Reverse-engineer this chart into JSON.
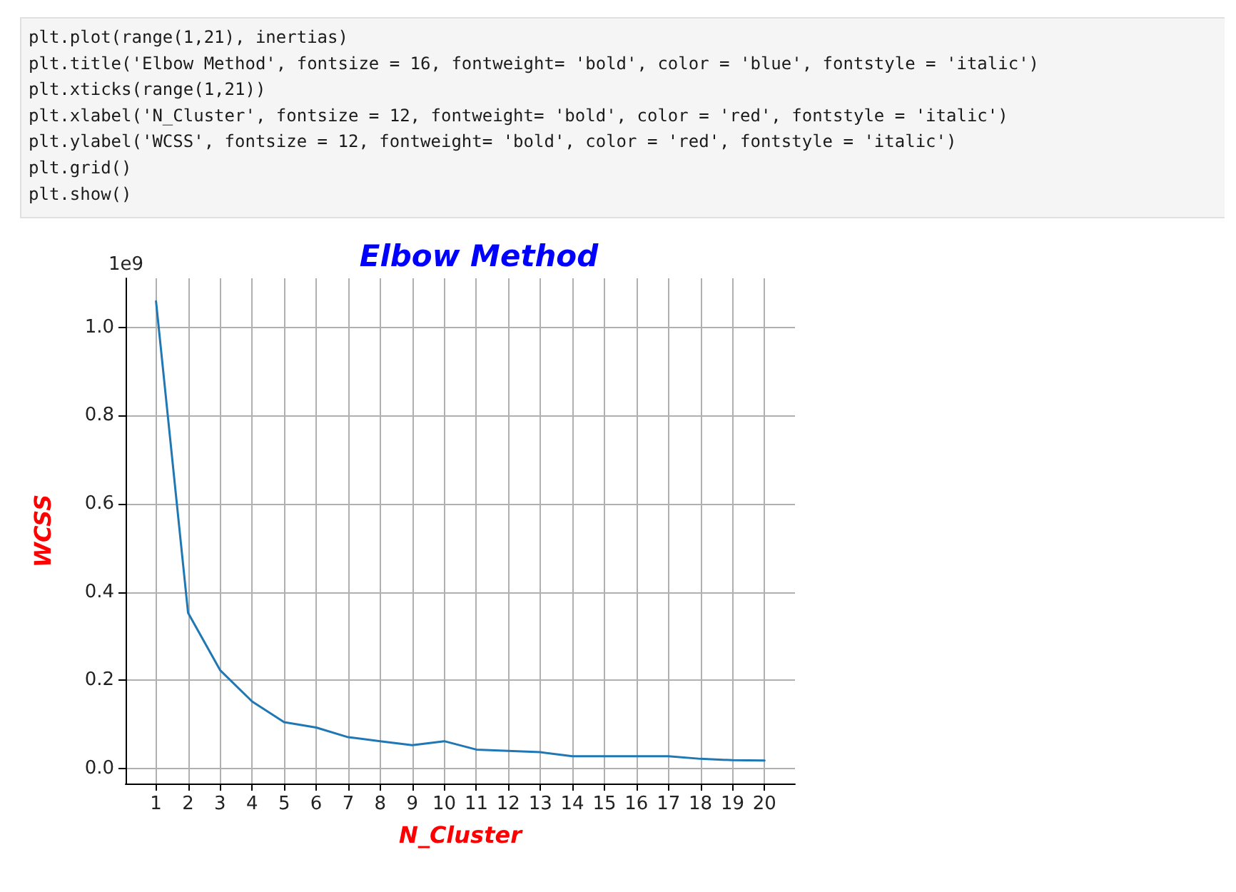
{
  "chart_data": {
    "type": "line",
    "title": "Elbow Method",
    "xlabel": "N_Cluster",
    "ylabel": "WCSS",
    "annotations": [
      "plt.plot(range(1,21), inertias)",
      "plt.title('Elbow Method', fontsize = 16, fontweight= 'bold', color = 'blue', fontstyle = 'italic')",
      "plt.xticks(range(1,21))",
      "plt.xlabel('N_Cluster', fontsize = 12, fontweight= 'bold', color = 'red', fontstyle = 'italic')",
      "plt.ylabel('WCSS', fontsize = 12, fontweight= 'bold', color = 'red', fontstyle = 'italic')",
      "plt.grid()",
      "plt.show()",
      "1e9"
    ],
    "x": [
      1,
      2,
      3,
      4,
      5,
      6,
      7,
      8,
      9,
      10,
      11,
      12,
      13,
      14,
      15,
      16,
      17,
      18,
      19,
      20
    ],
    "series": [
      {
        "color": "#1f77b4",
        "values": [
          1.059,
          0.353,
          0.223,
          0.152,
          0.105,
          0.093,
          0.071,
          0.062,
          0.053,
          0.062,
          0.043,
          0.04,
          0.037,
          0.028,
          0.028,
          0.028,
          0.028,
          0.022,
          0.019,
          0.018
        ]
      }
    ],
    "xlim": [
      0.05,
      20.95
    ],
    "xticks": [
      1,
      2,
      3,
      4,
      5,
      6,
      7,
      8,
      9,
      10,
      11,
      12,
      13,
      14,
      15,
      16,
      17,
      18,
      19,
      20
    ],
    "ylim": [
      -0.034,
      1.111
    ],
    "yticks": [
      {
        "value": 0,
        "label": "0.0"
      },
      {
        "value": 0.2,
        "label": "0.2"
      },
      {
        "value": 0.4,
        "label": "0.4"
      },
      {
        "value": 0.6,
        "label": "0.6"
      },
      {
        "value": 0.8,
        "label": "0.8"
      },
      {
        "value": 1,
        "label": "1.0"
      }
    ],
    "grid": true,
    "marker": "none",
    "line_style": "solid"
  }
}
